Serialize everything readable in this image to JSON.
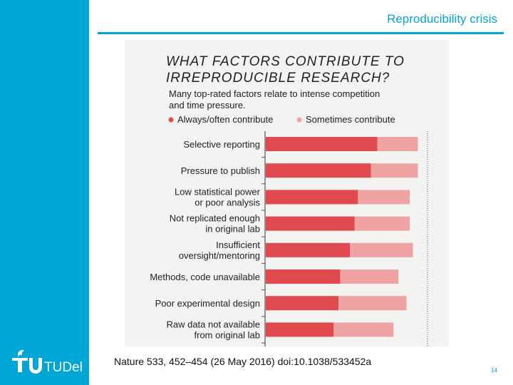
{
  "slide": {
    "title": "Reproducibility crisis",
    "citation": "Nature 533, 452–454 (26 May 2016) doi:10.1038/533452a",
    "page_number": "14"
  },
  "branding": {
    "logo_text": "TUDelft",
    "accent_color": "#00a6d6"
  },
  "chart_data": {
    "type": "bar",
    "title_lines": [
      "WHAT FACTORS CONTRIBUTE TO",
      "IRREPRODUCIBLE RESEARCH?"
    ],
    "subtitle_lines": [
      "Many top-rated factors relate to intense competition",
      "and time pressure."
    ],
    "legend": [
      {
        "label": "Always/often contribute",
        "color": "#e04a4e"
      },
      {
        "label": "Sometimes contribute",
        "color": "#f0a3a3"
      }
    ],
    "categories": [
      [
        "Selective reporting"
      ],
      [
        "Pressure to publish"
      ],
      [
        "Low statistical power",
        "or poor analysis"
      ],
      [
        "Not replicated enough",
        "in original lab"
      ],
      [
        "Insufficient",
        "oversight/mentoring"
      ],
      [
        "Methods, code unavailable"
      ],
      [
        "Poor experimental design"
      ],
      [
        "Raw data not available",
        "from original lab"
      ]
    ],
    "series": [
      {
        "name": "Always/often contribute",
        "values": [
          69,
          65,
          57,
          55,
          52,
          46,
          45,
          42
        ]
      },
      {
        "name": "Sometimes contribute",
        "values": [
          25,
          29,
          32,
          34,
          39,
          36,
          42,
          37
        ]
      }
    ],
    "xlim": [
      0,
      100
    ],
    "gridlines_dotted": true
  }
}
